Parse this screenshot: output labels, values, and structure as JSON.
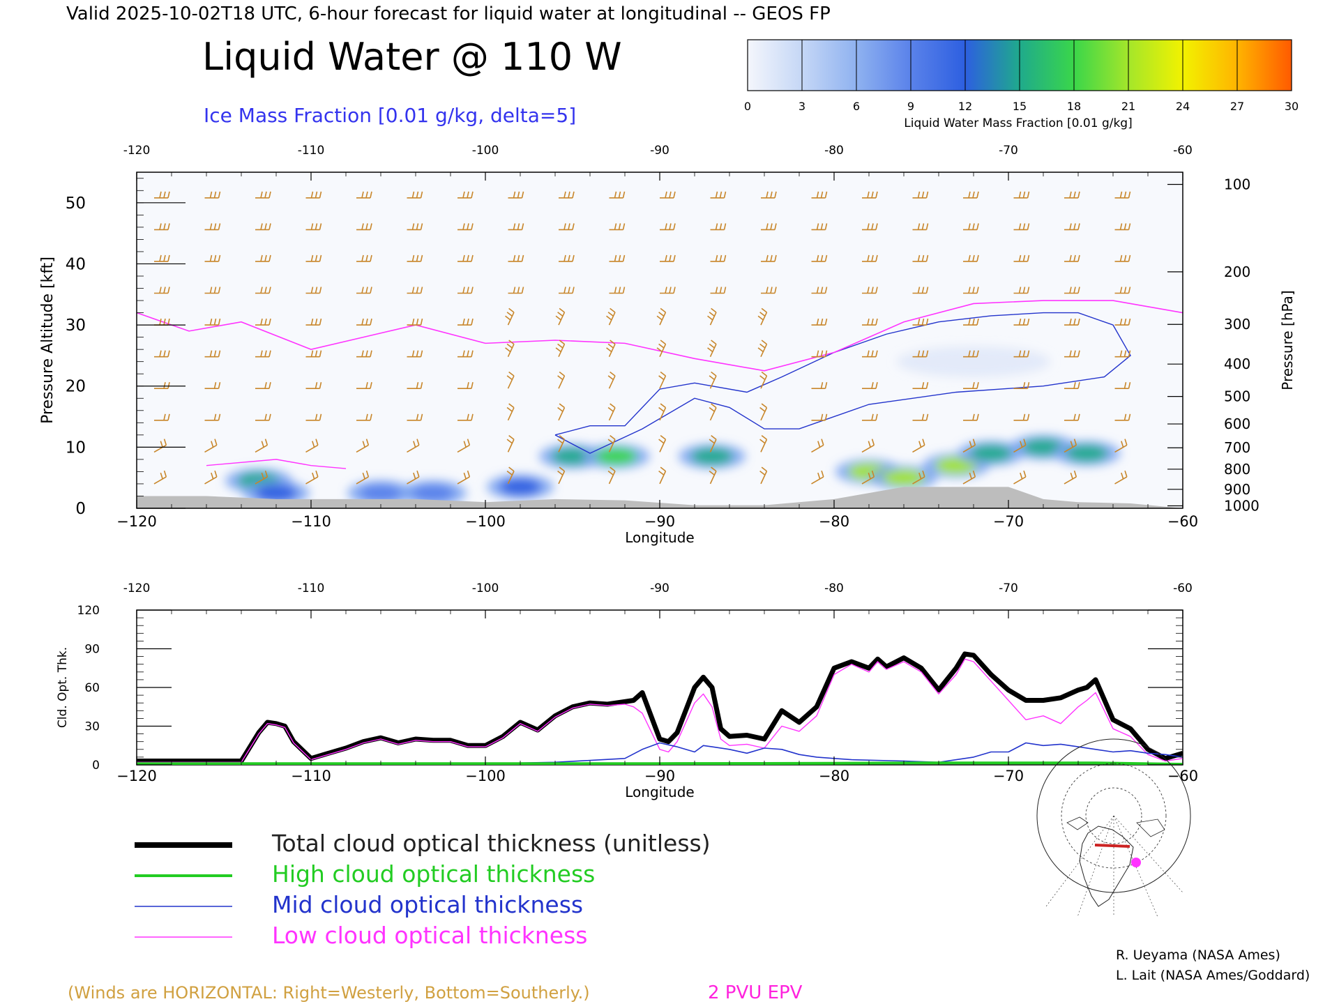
{
  "header": {
    "valid_line": "Valid 2025-10-02T18 UTC, 6-hour forecast for liquid water at longitudinal -- GEOS FP",
    "title": "Liquid Water @ 110 W",
    "subtitle": "Ice Mass Fraction [0.01 g/kg, delta=5]"
  },
  "colorbar": {
    "ticks": [
      "0",
      "3",
      "6",
      "9",
      "12",
      "15",
      "18",
      "21",
      "24",
      "27",
      "30"
    ],
    "label": "Liquid Water Mass Fraction [0.01 g/kg]",
    "colors": [
      "#f4f6fc",
      "#c5d7f6",
      "#8fb2f0",
      "#5a82ea",
      "#2d5fe0",
      "#1faa8c",
      "#3ad64a",
      "#a4e62a",
      "#f2f200",
      "#ffb400",
      "#ff5a00"
    ]
  },
  "colors": {
    "wind_barb": "#c8862a",
    "epv_contour": "#ff33ff",
    "ice_contour": "#2233cc",
    "terrain": "#bdbdbd",
    "total": "#000000",
    "high": "#22cc22",
    "mid": "#2233cc",
    "low": "#ff33ff"
  },
  "panel1": {
    "top_axis_ticks": [
      "-120",
      "-110",
      "-100",
      "-90",
      "-80",
      "-70",
      "-60"
    ],
    "bottom_axis_ticks": [
      "−120",
      "−110",
      "−100",
      "−90",
      "−80",
      "−70",
      "−60"
    ],
    "left_ticks": [
      "50",
      "40",
      "30",
      "20",
      "10",
      "0"
    ],
    "left_label": "Pressure Altitude [kft]",
    "right_ticks": [
      "100",
      "200",
      "300",
      "400",
      "500",
      "600",
      "700",
      "800",
      "900",
      "1000"
    ],
    "right_label": "Pressure [hPa]",
    "xlabel": "Longitude"
  },
  "panel2": {
    "top_axis_ticks": [
      "-120",
      "-110",
      "-100",
      "-90",
      "-80",
      "-70",
      "-60"
    ],
    "bottom_axis_ticks": [
      "−120",
      "−110",
      "−100",
      "−90",
      "−80",
      "−70",
      "−60"
    ],
    "left_ticks": [
      "120",
      "90",
      "60",
      "30",
      "0"
    ],
    "ylabel": "Cld. Opt. Thk.",
    "xlabel": "Longitude"
  },
  "legend": {
    "items": [
      {
        "key": "total",
        "label": "Total cloud optical thickness (unitless)"
      },
      {
        "key": "high",
        "label": "High cloud optical thickness"
      },
      {
        "key": "mid",
        "label": "Mid cloud optical thickness"
      },
      {
        "key": "low",
        "label": "Low cloud optical thickness"
      }
    ]
  },
  "footer": {
    "winds_note": "(Winds are HORIZONTAL: Right=Westerly, Bottom=Southerly.)",
    "epv_note": "2 PVU EPV",
    "credit1": "R. Ueyama (NASA Ames)",
    "credit2": "L. Lait (NASA Ames/Goddard)"
  },
  "chart_data": [
    {
      "type": "heatmap",
      "title": "Liquid Water @ 110 W",
      "xlabel": "Longitude",
      "ylabel": "Pressure Altitude [kft]",
      "xlim": [
        -120,
        -60
      ],
      "ylim": [
        0,
        55
      ],
      "liquid_water_blobs": [
        {
          "lon": -113,
          "alt": 4.5,
          "value": 14
        },
        {
          "lon": -112,
          "alt": 2.5,
          "value": 13
        },
        {
          "lon": -106,
          "alt": 2.5,
          "value": 10
        },
        {
          "lon": -103,
          "alt": 2.5,
          "value": 10
        },
        {
          "lon": -98,
          "alt": 3.5,
          "value": 12
        },
        {
          "lon": -95,
          "alt": 8.5,
          "value": 14
        },
        {
          "lon": -92.5,
          "alt": 8.5,
          "value": 17
        },
        {
          "lon": -87,
          "alt": 8.5,
          "value": 15
        },
        {
          "lon": -78,
          "alt": 6,
          "value": 20
        },
        {
          "lon": -76,
          "alt": 5,
          "value": 20
        },
        {
          "lon": -73,
          "alt": 7,
          "value": 22
        },
        {
          "lon": -71,
          "alt": 9,
          "value": 16
        },
        {
          "lon": -68,
          "alt": 10,
          "value": 15
        },
        {
          "lon": -65.5,
          "alt": 9,
          "value": 16
        }
      ],
      "epv_2pvu_contour": {
        "lon": [
          -120,
          -117,
          -114,
          -110,
          -107,
          -104,
          -100,
          -96,
          -92,
          -88,
          -84,
          -80,
          -76,
          -72,
          -68,
          -64,
          -60
        ],
        "alt": [
          32,
          29,
          30.5,
          26,
          28,
          30,
          27,
          27.5,
          27,
          24.5,
          22.5,
          25.5,
          30.5,
          33.5,
          34,
          34,
          32
        ]
      },
      "ice_mass_contour": {
        "lon": [
          -96,
          -94,
          -92,
          -90,
          -88,
          -85,
          -83,
          -80,
          -77,
          -74,
          -71,
          -68,
          -66,
          -64,
          -63,
          -64.5,
          -68,
          -73,
          -78,
          -82,
          -84,
          -86,
          -88,
          -91,
          -94,
          -96
        ],
        "alt": [
          12,
          13.5,
          13.5,
          19.5,
          20.5,
          19,
          21.5,
          25.5,
          28.5,
          30.5,
          31.5,
          32,
          32,
          30,
          25,
          21.5,
          20,
          19,
          17,
          13,
          13,
          16.5,
          18,
          13,
          9,
          12
        ]
      },
      "terrain_kft": {
        "lon": [
          -120,
          -116,
          -112,
          -108,
          -104,
          -100,
          -96,
          -92,
          -88,
          -84,
          -80,
          -76,
          -72,
          -70,
          -68,
          -66,
          -63,
          -60
        ],
        "alt": [
          2,
          2,
          1.5,
          1.5,
          1.5,
          1,
          1.5,
          1.3,
          0.5,
          0.5,
          1.5,
          3.5,
          3.5,
          3.5,
          1.5,
          1,
          0.8,
          0
        ]
      }
    },
    {
      "type": "line",
      "xlabel": "Longitude",
      "ylabel": "Cld. Opt. Thk.",
      "xlim": [
        -120,
        -60
      ],
      "ylim": [
        0,
        120
      ],
      "series": [
        {
          "name": "Total cloud optical thickness (unitless)",
          "key": "total",
          "x": [
            -120,
            -118,
            -116,
            -114,
            -113,
            -112.5,
            -112,
            -111.5,
            -111,
            -110,
            -109,
            -108,
            -107,
            -106,
            -105,
            -104,
            -103,
            -102,
            -101,
            -100,
            -99,
            -98,
            -97,
            -96,
            -95,
            -94,
            -93,
            -92,
            -91.5,
            -91,
            -90,
            -89.5,
            -89,
            -88,
            -87.5,
            -87,
            -86.5,
            -86,
            -85,
            -84,
            -83,
            -82,
            -81,
            -80,
            -79,
            -78,
            -77.5,
            -77,
            -76,
            -75,
            -74,
            -73,
            -72.5,
            -72,
            -71,
            -70,
            -69,
            -68,
            -67,
            -66,
            -65.5,
            -65,
            -64,
            -63,
            -62,
            -61,
            -60
          ],
          "y": [
            3,
            3,
            3,
            3,
            25,
            33,
            32,
            30,
            18,
            5,
            9,
            13,
            18,
            21,
            17,
            20,
            19,
            19,
            15,
            15,
            22,
            33,
            27,
            38,
            45,
            48,
            47,
            49,
            50,
            56,
            20,
            18,
            25,
            60,
            68,
            60,
            28,
            22,
            23,
            20,
            42,
            33,
            45,
            75,
            80,
            75,
            82,
            76,
            83,
            75,
            58,
            75,
            86,
            85,
            70,
            58,
            50,
            50,
            52,
            58,
            60,
            66,
            35,
            28,
            12,
            5,
            9
          ]
        },
        {
          "name": "High cloud optical thickness",
          "key": "high",
          "x": [
            -120,
            -110,
            -100,
            -90,
            -80,
            -75,
            -70,
            -65,
            -60
          ],
          "y": [
            1,
            1,
            1,
            1,
            1.2,
            1.5,
            1.5,
            1.5,
            0.5
          ]
        },
        {
          "name": "Mid cloud optical thickness",
          "key": "mid",
          "x": [
            -120,
            -114,
            -110,
            -100,
            -96,
            -92,
            -91,
            -90,
            -89,
            -88,
            -87.5,
            -87,
            -86,
            -85,
            -84,
            -83,
            -82,
            -81,
            -80,
            -79,
            -76,
            -74,
            -72,
            -71,
            -70,
            -69,
            -68,
            -67,
            -66,
            -65,
            -64,
            -63,
            -62,
            -61,
            -60
          ],
          "y": [
            1,
            1,
            1,
            1,
            2,
            5,
            12,
            17,
            14,
            10,
            15,
            14,
            12,
            9,
            13,
            12,
            8,
            6,
            5,
            4,
            3,
            2,
            6,
            10,
            10,
            17,
            15,
            16,
            14,
            12,
            10,
            11,
            9,
            8,
            6
          ]
        },
        {
          "name": "Low cloud optical thickness",
          "key": "low",
          "x": [
            -120,
            -118,
            -116,
            -114,
            -113,
            -112.5,
            -112,
            -111.5,
            -111,
            -110,
            -109,
            -108,
            -107,
            -106,
            -105,
            -104,
            -103,
            -102,
            -101,
            -100,
            -99,
            -98,
            -97,
            -96,
            -95,
            -94,
            -93,
            -92,
            -91.5,
            -91,
            -90,
            -89.5,
            -89,
            -88,
            -87.5,
            -87,
            -86.5,
            -86,
            -85,
            -84,
            -83,
            -82,
            -81,
            -80,
            -79,
            -78,
            -77.5,
            -77,
            -76,
            -75,
            -74,
            -73,
            -72.5,
            -72,
            -71,
            -70,
            -69,
            -68,
            -67,
            -66,
            -65.5,
            -65,
            -64,
            -63,
            -62,
            -61,
            -60
          ],
          "y": [
            2,
            2,
            2,
            2,
            24,
            32,
            31,
            29,
            17,
            4,
            8,
            12,
            17,
            20,
            16,
            19,
            18,
            18,
            14,
            14,
            21,
            32,
            26,
            37,
            44,
            47,
            46,
            47,
            45,
            40,
            12,
            10,
            18,
            48,
            55,
            45,
            20,
            15,
            16,
            13,
            30,
            26,
            38,
            70,
            78,
            72,
            80,
            74,
            80,
            72,
            55,
            70,
            82,
            80,
            65,
            50,
            35,
            38,
            32,
            45,
            50,
            56,
            28,
            22,
            8,
            3,
            5
          ]
        }
      ]
    }
  ]
}
